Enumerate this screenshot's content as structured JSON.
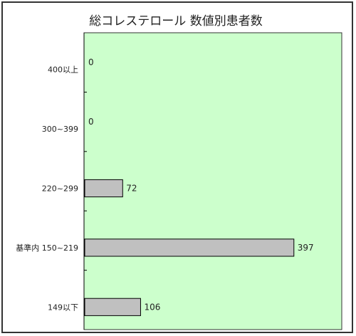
{
  "chart_data": {
    "type": "bar",
    "orientation": "horizontal",
    "title": "総コレステロール 数値別患者数",
    "categories": [
      "400以上",
      "300~399",
      "220~299",
      "基準内 150~219",
      "149以下"
    ],
    "values": [
      0,
      0,
      72,
      397,
      106
    ],
    "xlim": [
      0,
      400
    ],
    "grid": false,
    "legend": "none",
    "plot_background": "#ccffcc",
    "bar_fill": "#c0c0c0",
    "bar_stroke": "#000000"
  }
}
